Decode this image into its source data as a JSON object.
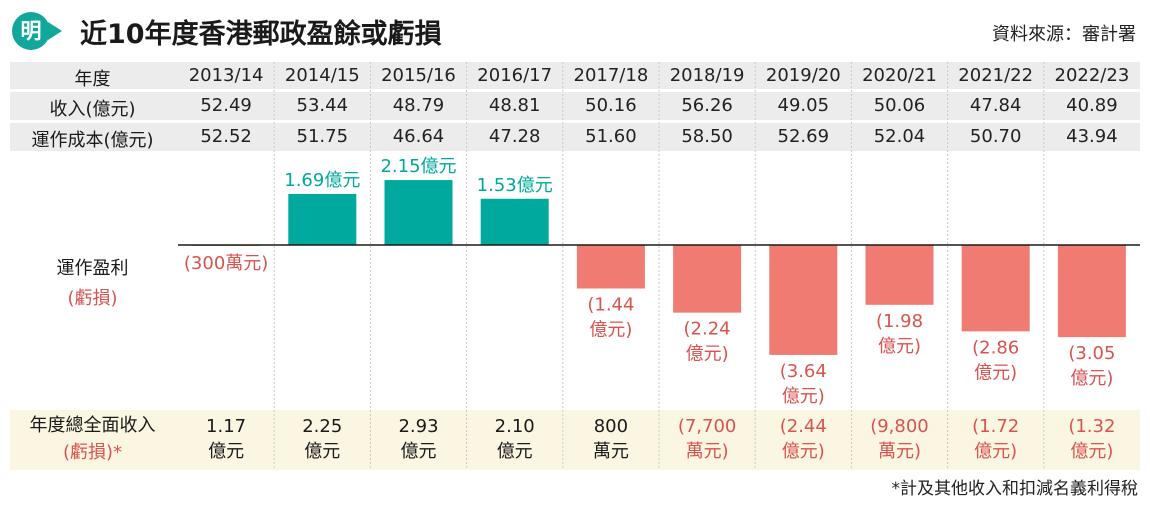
{
  "header": {
    "logo_char": "明",
    "title": "近10年度香港郵政盈餘或虧損",
    "source": "資料來源：審計署"
  },
  "table": {
    "year_label": "年度",
    "revenue_label": "收入(億元)",
    "cost_label": "運作成本(億元)",
    "years": [
      "2013/14",
      "2014/15",
      "2015/16",
      "2016/17",
      "2017/18",
      "2018/19",
      "2019/20",
      "2020/21",
      "2021/22",
      "2022/23"
    ],
    "revenue": [
      "52.49",
      "53.44",
      "48.79",
      "48.81",
      "50.16",
      "56.26",
      "49.05",
      "50.06",
      "47.84",
      "40.89"
    ],
    "cost": [
      "52.52",
      "51.75",
      "46.64",
      "47.28",
      "51.60",
      "58.50",
      "52.69",
      "52.04",
      "50.70",
      "43.94"
    ]
  },
  "chart_labels": {
    "operating_label": "運作盈利",
    "operating_sub": "(虧損)"
  },
  "footer": {
    "total_label": "年度總全面收入",
    "total_sub": "(虧損)*",
    "values": [
      "1.17\n億元",
      "2.25\n億元",
      "2.93\n億元",
      "2.10\n億元",
      "800\n萬元",
      "(7,700\n萬元)",
      "(2.44\n億元)",
      "(9,800\n萬元)",
      "(1.72\n億元)",
      "(1.32\n億元)"
    ],
    "negative": [
      false,
      false,
      false,
      false,
      false,
      true,
      true,
      true,
      true,
      true
    ],
    "footnote": "*計及其他收入和扣減名義利得稅"
  },
  "colors": {
    "positive": "#00a99d",
    "negative": "#f07b72",
    "negative_text": "#d9534f",
    "footer_bg": "#fbf6e1",
    "row_bg": "#ececec"
  },
  "chart_data": {
    "type": "bar",
    "categories": [
      "2013/14",
      "2014/15",
      "2015/16",
      "2016/17",
      "2017/18",
      "2018/19",
      "2019/20",
      "2020/21",
      "2021/22",
      "2022/23"
    ],
    "values": [
      -0.03,
      1.69,
      2.15,
      1.53,
      -1.44,
      -2.24,
      -3.64,
      -1.98,
      -2.86,
      -3.05
    ],
    "unit": "億元",
    "data_labels": [
      "(300萬元)",
      "1.69億元",
      "2.15億元",
      "1.53億元",
      "(1.44\n億元)",
      "(2.24\n億元)",
      "(3.64\n億元)",
      "(1.98\n億元)",
      "(2.86\n億元)",
      "(3.05\n億元)"
    ],
    "ylabel": "運作盈利(虧損)"
  }
}
